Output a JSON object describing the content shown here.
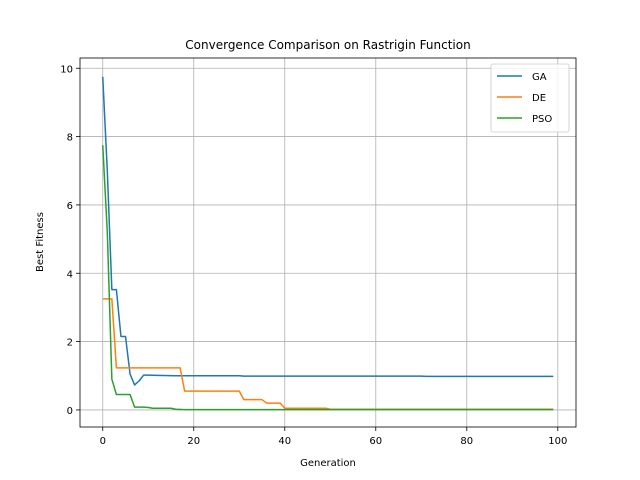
{
  "chart_data": {
    "type": "line",
    "title": "Convergence Comparison on Rastrigin Function",
    "xlabel": "Generation",
    "ylabel": "Best Fitness",
    "xlim": [
      -5,
      104
    ],
    "ylim": [
      -0.5,
      10.3
    ],
    "x_ticks": [
      0,
      20,
      40,
      60,
      80,
      100
    ],
    "y_ticks": [
      0,
      2,
      4,
      6,
      8,
      10
    ],
    "grid": true,
    "legend_position": "top-right",
    "series": [
      {
        "name": "GA",
        "color": "#1f77b4",
        "points": [
          [
            0,
            9.75
          ],
          [
            1,
            7.0
          ],
          [
            2,
            3.52
          ],
          [
            3,
            3.52
          ],
          [
            4,
            2.15
          ],
          [
            5,
            2.15
          ],
          [
            6,
            1.05
          ],
          [
            7,
            0.73
          ],
          [
            8,
            0.85
          ],
          [
            9,
            1.02
          ],
          [
            10,
            1.02
          ],
          [
            12,
            1.01
          ],
          [
            16,
            1.0
          ],
          [
            30,
            1.0
          ],
          [
            31,
            0.99
          ],
          [
            70,
            0.99
          ],
          [
            71,
            0.98
          ],
          [
            99,
            0.98
          ]
        ]
      },
      {
        "name": "DE",
        "color": "#ff7f0e",
        "points": [
          [
            0,
            3.25
          ],
          [
            1,
            3.25
          ],
          [
            2,
            3.25
          ],
          [
            3,
            1.23
          ],
          [
            4,
            1.23
          ],
          [
            5,
            1.23
          ],
          [
            16,
            1.23
          ],
          [
            17,
            1.23
          ],
          [
            18,
            0.55
          ],
          [
            19,
            0.55
          ],
          [
            30,
            0.55
          ],
          [
            31,
            0.3
          ],
          [
            32,
            0.3
          ],
          [
            35,
            0.3
          ],
          [
            36,
            0.2
          ],
          [
            37,
            0.2
          ],
          [
            39,
            0.2
          ],
          [
            40,
            0.05
          ],
          [
            41,
            0.05
          ],
          [
            49,
            0.05
          ],
          [
            50,
            0.02
          ],
          [
            99,
            0.02
          ]
        ]
      },
      {
        "name": "PSO",
        "color": "#2ca02c",
        "points": [
          [
            0,
            7.75
          ],
          [
            1,
            5.2
          ],
          [
            2,
            0.9
          ],
          [
            3,
            0.45
          ],
          [
            4,
            0.45
          ],
          [
            5,
            0.45
          ],
          [
            6,
            0.45
          ],
          [
            7,
            0.08
          ],
          [
            8,
            0.08
          ],
          [
            9,
            0.08
          ],
          [
            10,
            0.07
          ],
          [
            11,
            0.05
          ],
          [
            15,
            0.05
          ],
          [
            16,
            0.02
          ],
          [
            18,
            0.01
          ],
          [
            99,
            0.01
          ]
        ]
      }
    ]
  }
}
